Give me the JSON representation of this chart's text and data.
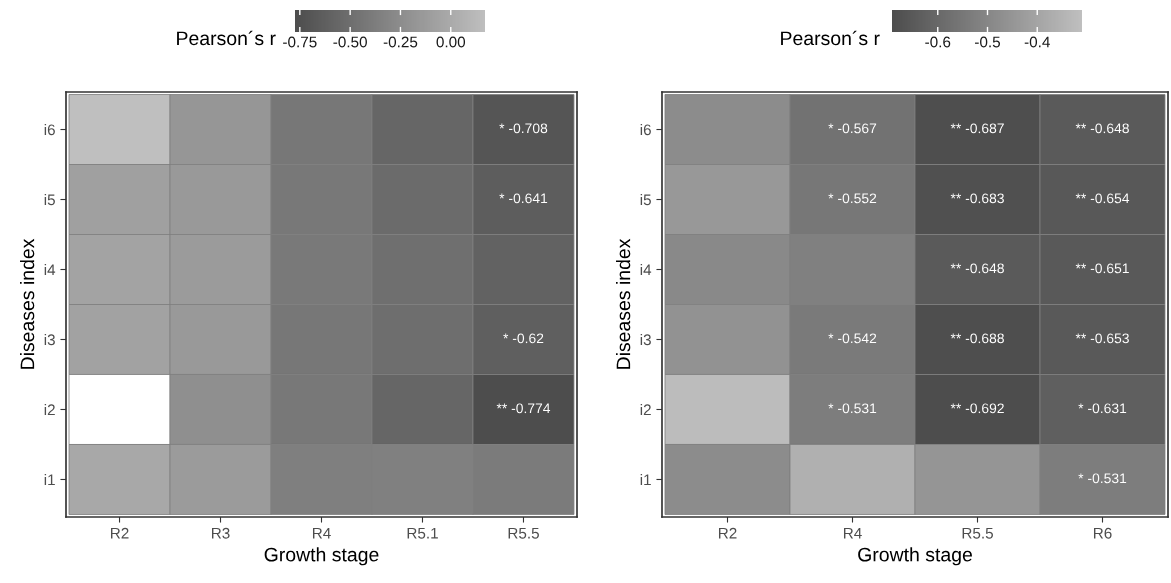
{
  "chart_data": [
    {
      "type": "heatmap",
      "xlabel": "Growth stage",
      "ylabel": "Diseases index",
      "clabel": "Pearson´s r",
      "categories": [
        "R2",
        "R3",
        "R4",
        "R5.1",
        "R5.5"
      ],
      "y_categories": [
        "i6",
        "i5",
        "i4",
        "i3",
        "i2",
        "i1"
      ],
      "cells": [
        [
          0.17,
          -0.17,
          -0.43,
          -0.57,
          -0.708
        ],
        [
          -0.09,
          -0.15,
          -0.42,
          -0.53,
          -0.641
        ],
        [
          -0.06,
          -0.13,
          -0.41,
          -0.49,
          -0.6
        ],
        [
          -0.07,
          -0.14,
          -0.43,
          -0.5,
          -0.62
        ],
        [
          null,
          -0.23,
          -0.42,
          -0.57,
          -0.774
        ],
        [
          -0.02,
          -0.13,
          -0.36,
          -0.35,
          -0.39
        ]
      ],
      "cell_labels": [
        [
          null,
          null,
          null,
          null,
          "* -0.708"
        ],
        [
          null,
          null,
          null,
          null,
          "* -0.641"
        ],
        [
          null,
          null,
          null,
          null,
          null
        ],
        [
          null,
          null,
          null,
          null,
          "* -0.62"
        ],
        [
          null,
          null,
          null,
          null,
          "** -0.774"
        ],
        [
          null,
          null,
          null,
          null,
          null
        ]
      ],
      "colors": [
        "#4d4d4d",
        "#bfbfbf"
      ],
      "clim": [
        -0.774,
        0.17
      ],
      "cticks": [
        {
          "value": -0.75,
          "label": "-0.75"
        },
        {
          "value": -0.5,
          "label": "-0.50"
        },
        {
          "value": -0.25,
          "label": "-0.25"
        },
        {
          "value": 0,
          "label": "0.00"
        }
      ]
    },
    {
      "type": "heatmap",
      "xlabel": "Growth stage",
      "ylabel": "Diseases index",
      "clabel": "Pearson´s r",
      "categories": [
        "R2",
        "R4",
        "R5.5",
        "R6"
      ],
      "y_categories": [
        "i6",
        "i5",
        "i4",
        "i3",
        "i2",
        "i1"
      ],
      "cells": [
        [
          -0.48,
          -0.567,
          -0.687,
          -0.648
        ],
        [
          -0.44,
          -0.552,
          -0.683,
          -0.654
        ],
        [
          -0.49,
          -0.52,
          -0.648,
          -0.651
        ],
        [
          -0.46,
          -0.542,
          -0.688,
          -0.653
        ],
        [
          -0.32,
          -0.531,
          -0.692,
          -0.631
        ],
        [
          -0.48,
          -0.36,
          -0.45,
          -0.531
        ]
      ],
      "cell_labels": [
        [
          null,
          "* -0.567",
          "** -0.687",
          "** -0.648"
        ],
        [
          null,
          "* -0.552",
          "** -0.683",
          "** -0.654"
        ],
        [
          null,
          null,
          "** -0.648",
          "** -0.651"
        ],
        [
          null,
          "* -0.542",
          "** -0.688",
          "** -0.653"
        ],
        [
          null,
          "* -0.531",
          "** -0.692",
          "* -0.631"
        ],
        [
          null,
          null,
          null,
          "* -0.531"
        ]
      ],
      "colors": [
        "#4d4d4d",
        "#bfbfbf"
      ],
      "clim": [
        -0.692,
        -0.31
      ],
      "cticks": [
        {
          "value": -0.6,
          "label": "-0.6"
        },
        {
          "value": -0.5,
          "label": "-0.5"
        },
        {
          "value": -0.4,
          "label": "-0.4"
        }
      ]
    }
  ]
}
